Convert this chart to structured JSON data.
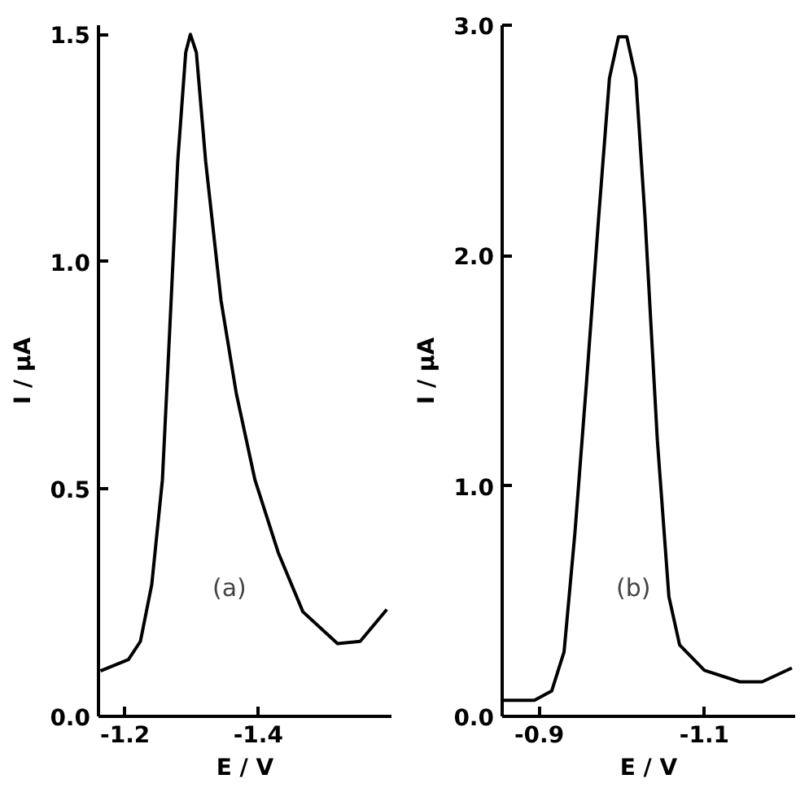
{
  "chart_data": [
    {
      "type": "line",
      "xlabel": "E / V",
      "ylabel": "I / μA",
      "annotations": [
        "(a)"
      ],
      "xlim": [
        -1.16,
        -1.6
      ],
      "ylim": [
        0,
        1.52
      ],
      "xticks": [
        -1.2,
        -1.4
      ],
      "yticks": [
        {
          "value": 0,
          "label": "0.0"
        },
        0.5,
        {
          "value": 1,
          "label": "1.0"
        },
        1.5
      ],
      "series": [
        {
          "color": "#000000",
          "x": [
            -1.163,
            -1.205,
            -1.223,
            -1.24,
            -1.256,
            -1.267,
            -1.279,
            -1.291,
            -1.298,
            -1.307,
            -1.321,
            -1.344,
            -1.367,
            -1.395,
            -1.43,
            -1.467,
            -1.519,
            -1.553,
            -1.593
          ],
          "values": [
            0.1,
            0.125,
            0.165,
            0.29,
            0.52,
            0.85,
            1.22,
            1.46,
            1.5,
            1.46,
            1.22,
            0.915,
            0.71,
            0.52,
            0.36,
            0.23,
            0.16,
            0.165,
            0.235
          ]
        }
      ]
    },
    {
      "type": "line",
      "xlabel": "E / V",
      "ylabel": "I / μA",
      "annotations": [
        "(b)"
      ],
      "xlim": [
        -0.855,
        -1.21
      ],
      "ylim": [
        0,
        3.0
      ],
      "xticks": [
        -0.9,
        -1.1
      ],
      "yticks": [
        {
          "value": 0,
          "label": "0.0"
        },
        {
          "value": 1,
          "label": "1.0"
        },
        {
          "value": 2,
          "label": "2.0"
        },
        {
          "value": 3,
          "label": "3.0"
        }
      ],
      "series": [
        {
          "color": "#000000",
          "x": [
            -0.857,
            -0.894,
            -0.915,
            -0.93,
            -0.943,
            -0.957,
            -0.972,
            -0.985,
            -0.996,
            -1.006,
            -1.017,
            -1.028,
            -1.043,
            -1.057,
            -1.07,
            -1.1,
            -1.143,
            -1.17,
            -1.206
          ],
          "values": [
            0.07,
            0.07,
            0.11,
            0.28,
            0.79,
            1.44,
            2.17,
            2.77,
            2.95,
            2.95,
            2.77,
            2.17,
            1.2,
            0.52,
            0.31,
            0.2,
            0.15,
            0.15,
            0.21
          ]
        }
      ]
    }
  ]
}
